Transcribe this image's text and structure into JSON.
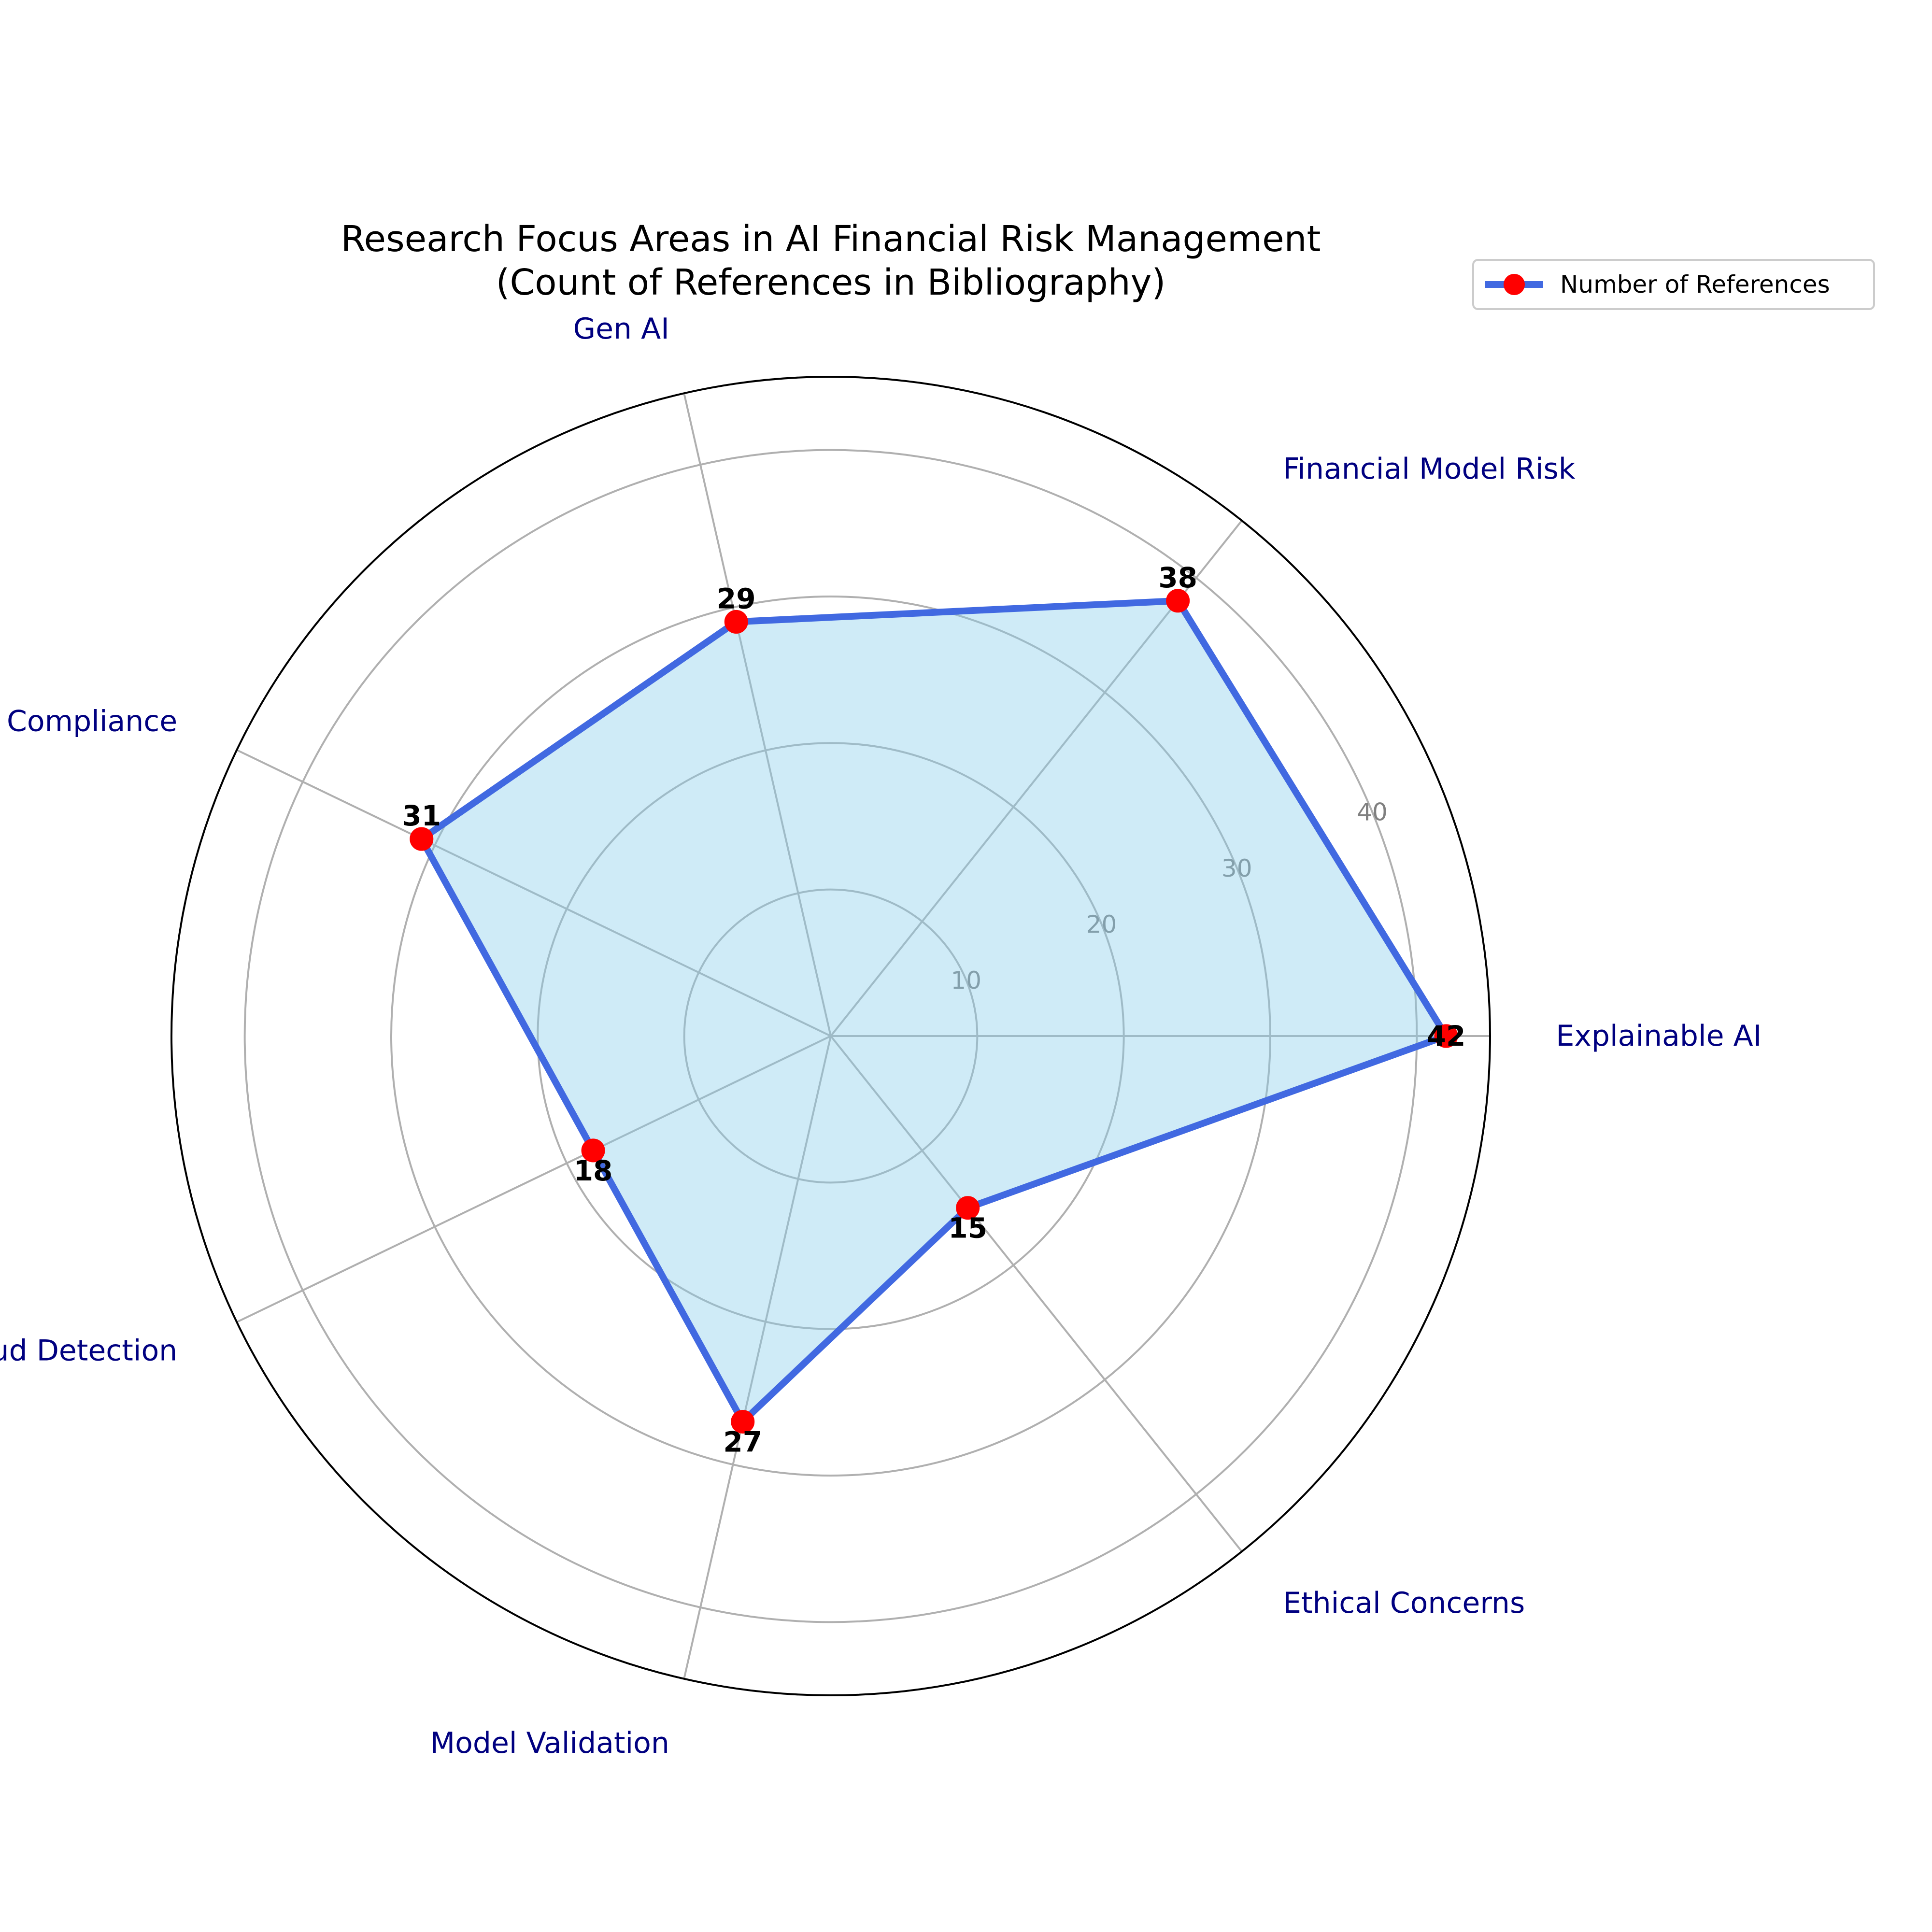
{
  "chart_data": {
    "type": "radar",
    "title": "Research Focus Areas in AI Financial Risk Management",
    "subtitle": "(Count of References in Bibliography)",
    "categories": [
      "Explainable AI",
      "Financial Model Risk",
      "Gen AI",
      "Regulatory Compliance",
      "Fraud Detection",
      "Model Validation",
      "Ethical Concerns"
    ],
    "series": [
      {
        "name": "Number of References",
        "values": [
          42,
          38,
          29,
          31,
          18,
          27,
          15
        ]
      }
    ],
    "rlim": [
      0,
      45
    ],
    "rticks": [
      10,
      20,
      30,
      40
    ],
    "grid": true,
    "legend": "top-right",
    "colors": {
      "line": "#4169e1",
      "fill": "#87ceeb",
      "marker": "#ff0000",
      "grid": "#b0b0b0",
      "category_label": "#000080",
      "tick_label": "#808080"
    }
  }
}
